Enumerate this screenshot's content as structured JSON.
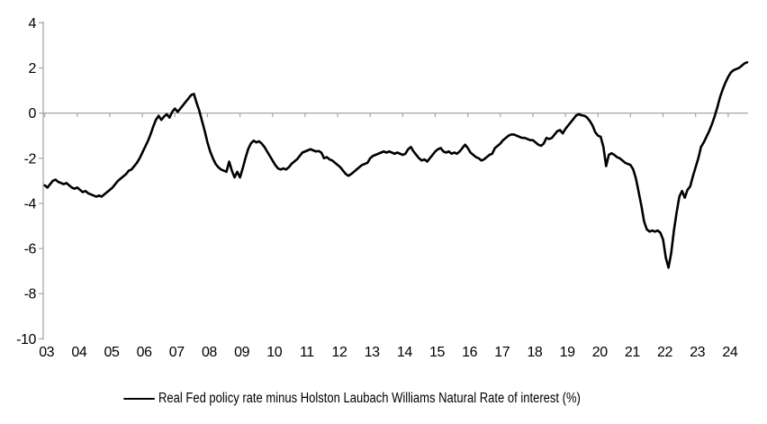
{
  "chart_data": {
    "type": "line",
    "title": "",
    "xlabel": "",
    "ylabel": "",
    "ylim": [
      -10,
      4
    ],
    "y_ticks": [
      4,
      2,
      0,
      -2,
      -4,
      -6,
      -8,
      -10
    ],
    "x_tick_labels": [
      "03",
      "04",
      "05",
      "06",
      "07",
      "08",
      "09",
      "10",
      "11",
      "12",
      "13",
      "14",
      "15",
      "16",
      "17",
      "18",
      "19",
      "20",
      "21",
      "22",
      "23",
      "24"
    ],
    "x_start_year": 2003,
    "x_step_months": 1,
    "grid": "zero-line-only",
    "axis_color": "#a6a6a6",
    "legend_position": "bottom-center",
    "series": [
      {
        "name": "Real Fed policy rate minus Holston Laubach Williams Natural Rate of interest (%)",
        "color": "#000000",
        "values": [
          -3.2,
          -3.3,
          -3.15,
          -3.0,
          -2.95,
          -3.05,
          -3.1,
          -3.15,
          -3.1,
          -3.2,
          -3.3,
          -3.35,
          -3.3,
          -3.4,
          -3.5,
          -3.45,
          -3.55,
          -3.6,
          -3.65,
          -3.7,
          -3.65,
          -3.7,
          -3.6,
          -3.5,
          -3.4,
          -3.3,
          -3.15,
          -3.0,
          -2.9,
          -2.8,
          -2.7,
          -2.55,
          -2.5,
          -2.35,
          -2.2,
          -2.0,
          -1.75,
          -1.5,
          -1.25,
          -0.95,
          -0.6,
          -0.3,
          -0.12,
          -0.3,
          -0.15,
          -0.05,
          -0.2,
          0.05,
          0.2,
          0.05,
          0.2,
          0.35,
          0.5,
          0.65,
          0.8,
          0.85,
          0.45,
          0.1,
          -0.35,
          -0.8,
          -1.3,
          -1.7,
          -2.0,
          -2.25,
          -2.4,
          -2.5,
          -2.55,
          -2.6,
          -2.15,
          -2.55,
          -2.85,
          -2.6,
          -2.85,
          -2.45,
          -2.0,
          -1.6,
          -1.35,
          -1.22,
          -1.3,
          -1.25,
          -1.35,
          -1.5,
          -1.7,
          -1.9,
          -2.1,
          -2.3,
          -2.45,
          -2.5,
          -2.45,
          -2.5,
          -2.4,
          -2.25,
          -2.15,
          -2.05,
          -1.9,
          -1.75,
          -1.7,
          -1.65,
          -1.6,
          -1.65,
          -1.7,
          -1.68,
          -1.75,
          -2.0,
          -1.95,
          -2.05,
          -2.1,
          -2.2,
          -2.3,
          -2.4,
          -2.55,
          -2.7,
          -2.78,
          -2.7,
          -2.6,
          -2.5,
          -2.4,
          -2.3,
          -2.25,
          -2.2,
          -2.0,
          -1.9,
          -1.85,
          -1.8,
          -1.75,
          -1.7,
          -1.75,
          -1.7,
          -1.75,
          -1.8,
          -1.75,
          -1.8,
          -1.85,
          -1.8,
          -1.6,
          -1.5,
          -1.7,
          -1.85,
          -2.0,
          -2.1,
          -2.05,
          -2.15,
          -2.0,
          -1.85,
          -1.7,
          -1.6,
          -1.55,
          -1.7,
          -1.75,
          -1.7,
          -1.8,
          -1.75,
          -1.8,
          -1.7,
          -1.55,
          -1.4,
          -1.55,
          -1.75,
          -1.85,
          -1.95,
          -2.0,
          -2.1,
          -2.05,
          -1.95,
          -1.85,
          -1.8,
          -1.55,
          -1.45,
          -1.35,
          -1.2,
          -1.1,
          -1.0,
          -0.95,
          -0.95,
          -1.0,
          -1.05,
          -1.1,
          -1.1,
          -1.15,
          -1.2,
          -1.2,
          -1.3,
          -1.4,
          -1.45,
          -1.35,
          -1.1,
          -1.15,
          -1.1,
          -0.95,
          -0.8,
          -0.75,
          -0.9,
          -0.7,
          -0.55,
          -0.4,
          -0.25,
          -0.1,
          -0.05,
          -0.1,
          -0.12,
          -0.2,
          -0.35,
          -0.55,
          -0.85,
          -1.0,
          -1.05,
          -1.5,
          -2.35,
          -1.85,
          -1.78,
          -1.85,
          -1.95,
          -2.0,
          -2.1,
          -2.2,
          -2.25,
          -2.3,
          -2.5,
          -2.9,
          -3.5,
          -4.1,
          -4.8,
          -5.15,
          -5.25,
          -5.2,
          -5.25,
          -5.2,
          -5.3,
          -5.6,
          -6.4,
          -6.85,
          -6.2,
          -5.2,
          -4.4,
          -3.7,
          -3.45,
          -3.75,
          -3.4,
          -3.25,
          -2.8,
          -2.4,
          -2.0,
          -1.5,
          -1.3,
          -1.05,
          -0.8,
          -0.5,
          -0.15,
          0.25,
          0.7,
          1.05,
          1.35,
          1.6,
          1.8,
          1.9,
          1.95,
          2.0,
          2.1,
          2.2,
          2.25
        ]
      }
    ]
  },
  "legend": {
    "label": "Real Fed policy rate minus Holston Laubach Williams Natural Rate of interest (%)"
  }
}
